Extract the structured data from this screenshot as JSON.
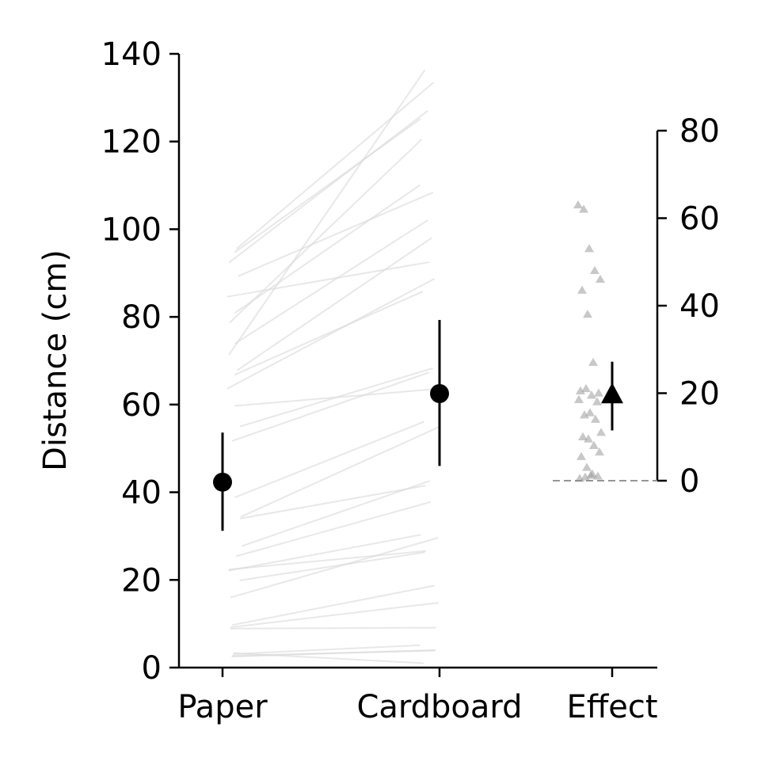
{
  "chart_data": {
    "type": "scatter",
    "ylabel": "Distance (cm)",
    "ylim": [
      0,
      140
    ],
    "yticks": [
      0,
      20,
      40,
      60,
      80,
      100,
      120,
      140
    ],
    "right_axis": {
      "ylim": [
        0,
        80
      ],
      "yticks": [
        0,
        20,
        40,
        60,
        80
      ],
      "baseline": 0
    },
    "categories": [
      "Paper",
      "Cardboard",
      "Effect"
    ],
    "colors": {
      "summary": "#000000",
      "pairs": "#d9d9d9",
      "effect_points": "#9a9a9a",
      "baseline": "#888888"
    },
    "summary": [
      {
        "category": "Paper",
        "mean": 42.3,
        "low": 31.2,
        "high": 53.6
      },
      {
        "category": "Cardboard",
        "mean": 62.5,
        "low": 46.0,
        "high": 79.3
      }
    ],
    "effect_summary": {
      "mean": 19.5,
      "low": 11.5,
      "high": 27.2
    },
    "pairs": [
      [
        2.7,
        3.9
      ],
      [
        2.5,
        4.0
      ],
      [
        3.1,
        5.1
      ],
      [
        3.3,
        1.0
      ],
      [
        8.9,
        9.1
      ],
      [
        9.7,
        18.7
      ],
      [
        9.2,
        14.8
      ],
      [
        16.0,
        29.6
      ],
      [
        19.9,
        26.3
      ],
      [
        22.4,
        26.6
      ],
      [
        22.1,
        30.3
      ],
      [
        27.7,
        42.6
      ],
      [
        25.4,
        37.8
      ],
      [
        34.0,
        41.5
      ],
      [
        38.8,
        56.1
      ],
      [
        34.4,
        54.9
      ],
      [
        55.0,
        68.3
      ],
      [
        51.7,
        67.3
      ],
      [
        59.7,
        63.5
      ],
      [
        63.6,
        88.7
      ],
      [
        66.8,
        85.8
      ],
      [
        73.9,
        102.1
      ],
      [
        67.8,
        98.0
      ],
      [
        78.7,
        120.5
      ],
      [
        80.9,
        110.1
      ],
      [
        84.6,
        92.5
      ],
      [
        89.3,
        108.4
      ],
      [
        95.5,
        133.5
      ],
      [
        92.4,
        127.0
      ],
      [
        94.7,
        125.2
      ],
      [
        71.4,
        136.3
      ]
    ],
    "effects": [
      63.0,
      62.0,
      53.0,
      48.0,
      46.0,
      43.5,
      38.0,
      27.0,
      20.0,
      20.5,
      21.0,
      19.5,
      18.0,
      18.5,
      15.0,
      15.5,
      14.0,
      11.0,
      10.0,
      9.5,
      8.0,
      6.5,
      5.5,
      3.0,
      1.5,
      1.0,
      0.5,
      0.8,
      1.2
    ]
  }
}
